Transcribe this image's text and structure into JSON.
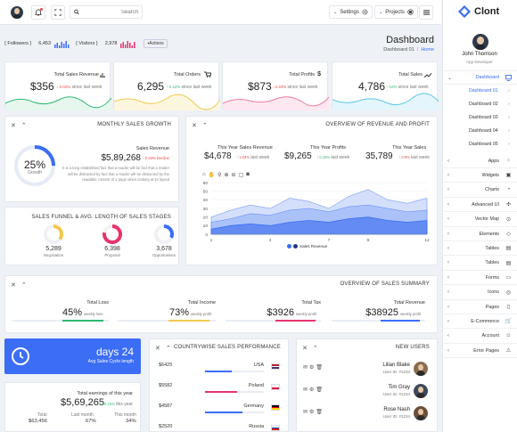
{
  "topbar": {
    "search_placeholder": "Search",
    "settings": "Settings",
    "projects": "Projects"
  },
  "stats": {
    "followers_label": "{ Followers }",
    "followers": "6,453",
    "visitors_label": "{ Visitors }",
    "visitors": "2,978",
    "actions": "Actions"
  },
  "page": {
    "title": "Dashboard",
    "crumb1": "Dashboard 01",
    "sep": "/",
    "crumb2": "Home"
  },
  "kpis": [
    {
      "label": "Total Sales Revenue",
      "value": "$356",
      "change": "↓ 0.02%",
      "note": "since last week",
      "dir": "down",
      "color": "#2eb872"
    },
    {
      "label": "Total Orders",
      "value": "6,295",
      "change": "↑ 0.12%",
      "note": "since last week",
      "dir": "up",
      "color": "#f2c94c"
    },
    {
      "label": "Total Profits",
      "value": "$873",
      "change": "↓ 0.34%",
      "note": "since last week",
      "dir": "down",
      "color": "#f07ba0"
    },
    {
      "label": "Total Sales",
      "value": "4,786",
      "change": "↑ 10%",
      "note": "since last week",
      "dir": "up",
      "color": "#58c7e8"
    }
  ],
  "growth": {
    "title": "MONTHLY SALES GROWTH",
    "percent": "25%",
    "growth_label": "Growth",
    "rev_label": "Sales Revenue",
    "rev_value": "$5,89,268",
    "rev_change": "↓ 0.03% Decline",
    "text": "It is a long established fact that a reader will be fact that a reader will be distracted by fact that a reader will be distracted by the readable content of a page when looking at its layout"
  },
  "funnel": {
    "title": "SALES FUNNEL & AVG. LENGTH OF SALES STAGES",
    "items": [
      {
        "value": "5,289",
        "label": "Negotiation"
      },
      {
        "value": "6,398",
        "label": "Proposal"
      },
      {
        "value": "3,678",
        "label": "Opportunities"
      }
    ]
  },
  "overview": {
    "title": "OVERVIEW OF REVENUE AND PROFIT",
    "cols": [
      {
        "label": "This Year Sales Revenue",
        "value": "$4,678",
        "change": "↑ 1.04%",
        "note": "last week"
      },
      {
        "label": "This Year Profits",
        "value": "$9,265",
        "change": "↑ 0.15%",
        "note": "last week"
      },
      {
        "label": "This Year Sales",
        "value": "35,789",
        "change": "↑ 0.8%",
        "note": "last week"
      }
    ],
    "legend": "Sales Revenue"
  },
  "chart_data": {
    "type": "area",
    "x": [
      1,
      2,
      3,
      4,
      5,
      6,
      7,
      8,
      9,
      10,
      11,
      12
    ],
    "xticks": [
      "1",
      "4",
      "7",
      "9",
      "12"
    ],
    "yticks": [
      "0",
      "10",
      "20",
      "30",
      "40",
      "50",
      "60"
    ],
    "ylim": [
      0,
      60
    ],
    "series": [
      {
        "values": [
          20,
          28,
          34,
          30,
          42,
          38,
          30,
          44,
          52,
          40,
          36,
          42
        ]
      },
      {
        "values": [
          14,
          18,
          24,
          22,
          28,
          30,
          26,
          32,
          34,
          30,
          26,
          28
        ]
      },
      {
        "values": [
          6,
          10,
          12,
          10,
          14,
          16,
          14,
          18,
          20,
          16,
          14,
          16
        ]
      }
    ]
  },
  "summary": {
    "title": "OVERVIEW OF SALES SUMMARY",
    "items": [
      {
        "label": "Total Loss",
        "value": "45%",
        "note": "weekly loss",
        "color": "#2eb872"
      },
      {
        "label": "Total Income",
        "value": "73%",
        "note": "weekly profit",
        "color": "#f2c94c"
      },
      {
        "label": "Total Tax",
        "value": "$3926",
        "note": "weekly profit",
        "color": "#e8346b"
      },
      {
        "label": "Total Revenue",
        "value": "$38925",
        "note": "weekly profit",
        "color": "#3b6df5"
      }
    ]
  },
  "days": {
    "value": "days 24",
    "label": "Avg Sales Cycle length"
  },
  "earnings": {
    "title": "Total earnings of this year",
    "value": "$5,69,265",
    "change": "↑ 10.15%",
    "note": "this year",
    "cols": [
      {
        "label": "Total",
        "value": "$63,456"
      },
      {
        "label": "Last month",
        "value": "67%"
      },
      {
        "label": "This month",
        "value": "34%"
      }
    ]
  },
  "country": {
    "title": "COUNTRYWISE SALES PERFORMANCE",
    "rows": [
      {
        "value": "$6425",
        "name": "USA",
        "color": "#3b6df5"
      },
      {
        "value": "$5582",
        "name": "Poland",
        "color": "#e8346b"
      },
      {
        "value": "$4587",
        "name": "Germany",
        "color": "#3b6df5"
      },
      {
        "value": "$2520",
        "name": "Russia",
        "color": "#3b6df5"
      }
    ]
  },
  "users": {
    "title": "NEW USERS",
    "rows": [
      {
        "name": "Lilian Blake",
        "id": "User ID: #1234"
      },
      {
        "name": "Tim Gray",
        "id": "User ID: #1234"
      },
      {
        "name": "Rose Nash",
        "id": "User ID: #1234"
      }
    ]
  },
  "sidebar": {
    "brand": "Clont",
    "user": "John Thomson",
    "role": "App Developer",
    "dashboard": "Dashboard",
    "subs": [
      "Dashboard 01",
      "Dashboard 02",
      "Dashboard 03",
      "Dashboard 04",
      "Dashboard 05"
    ],
    "items": [
      "Apps",
      "Widgets",
      "Charts",
      "Advanced UI",
      "Vector Map",
      "Elements",
      "Tables",
      "Tables",
      "Forms",
      "Icons",
      "Pages",
      "E-Commerce",
      "Account",
      "Error Pages"
    ]
  }
}
